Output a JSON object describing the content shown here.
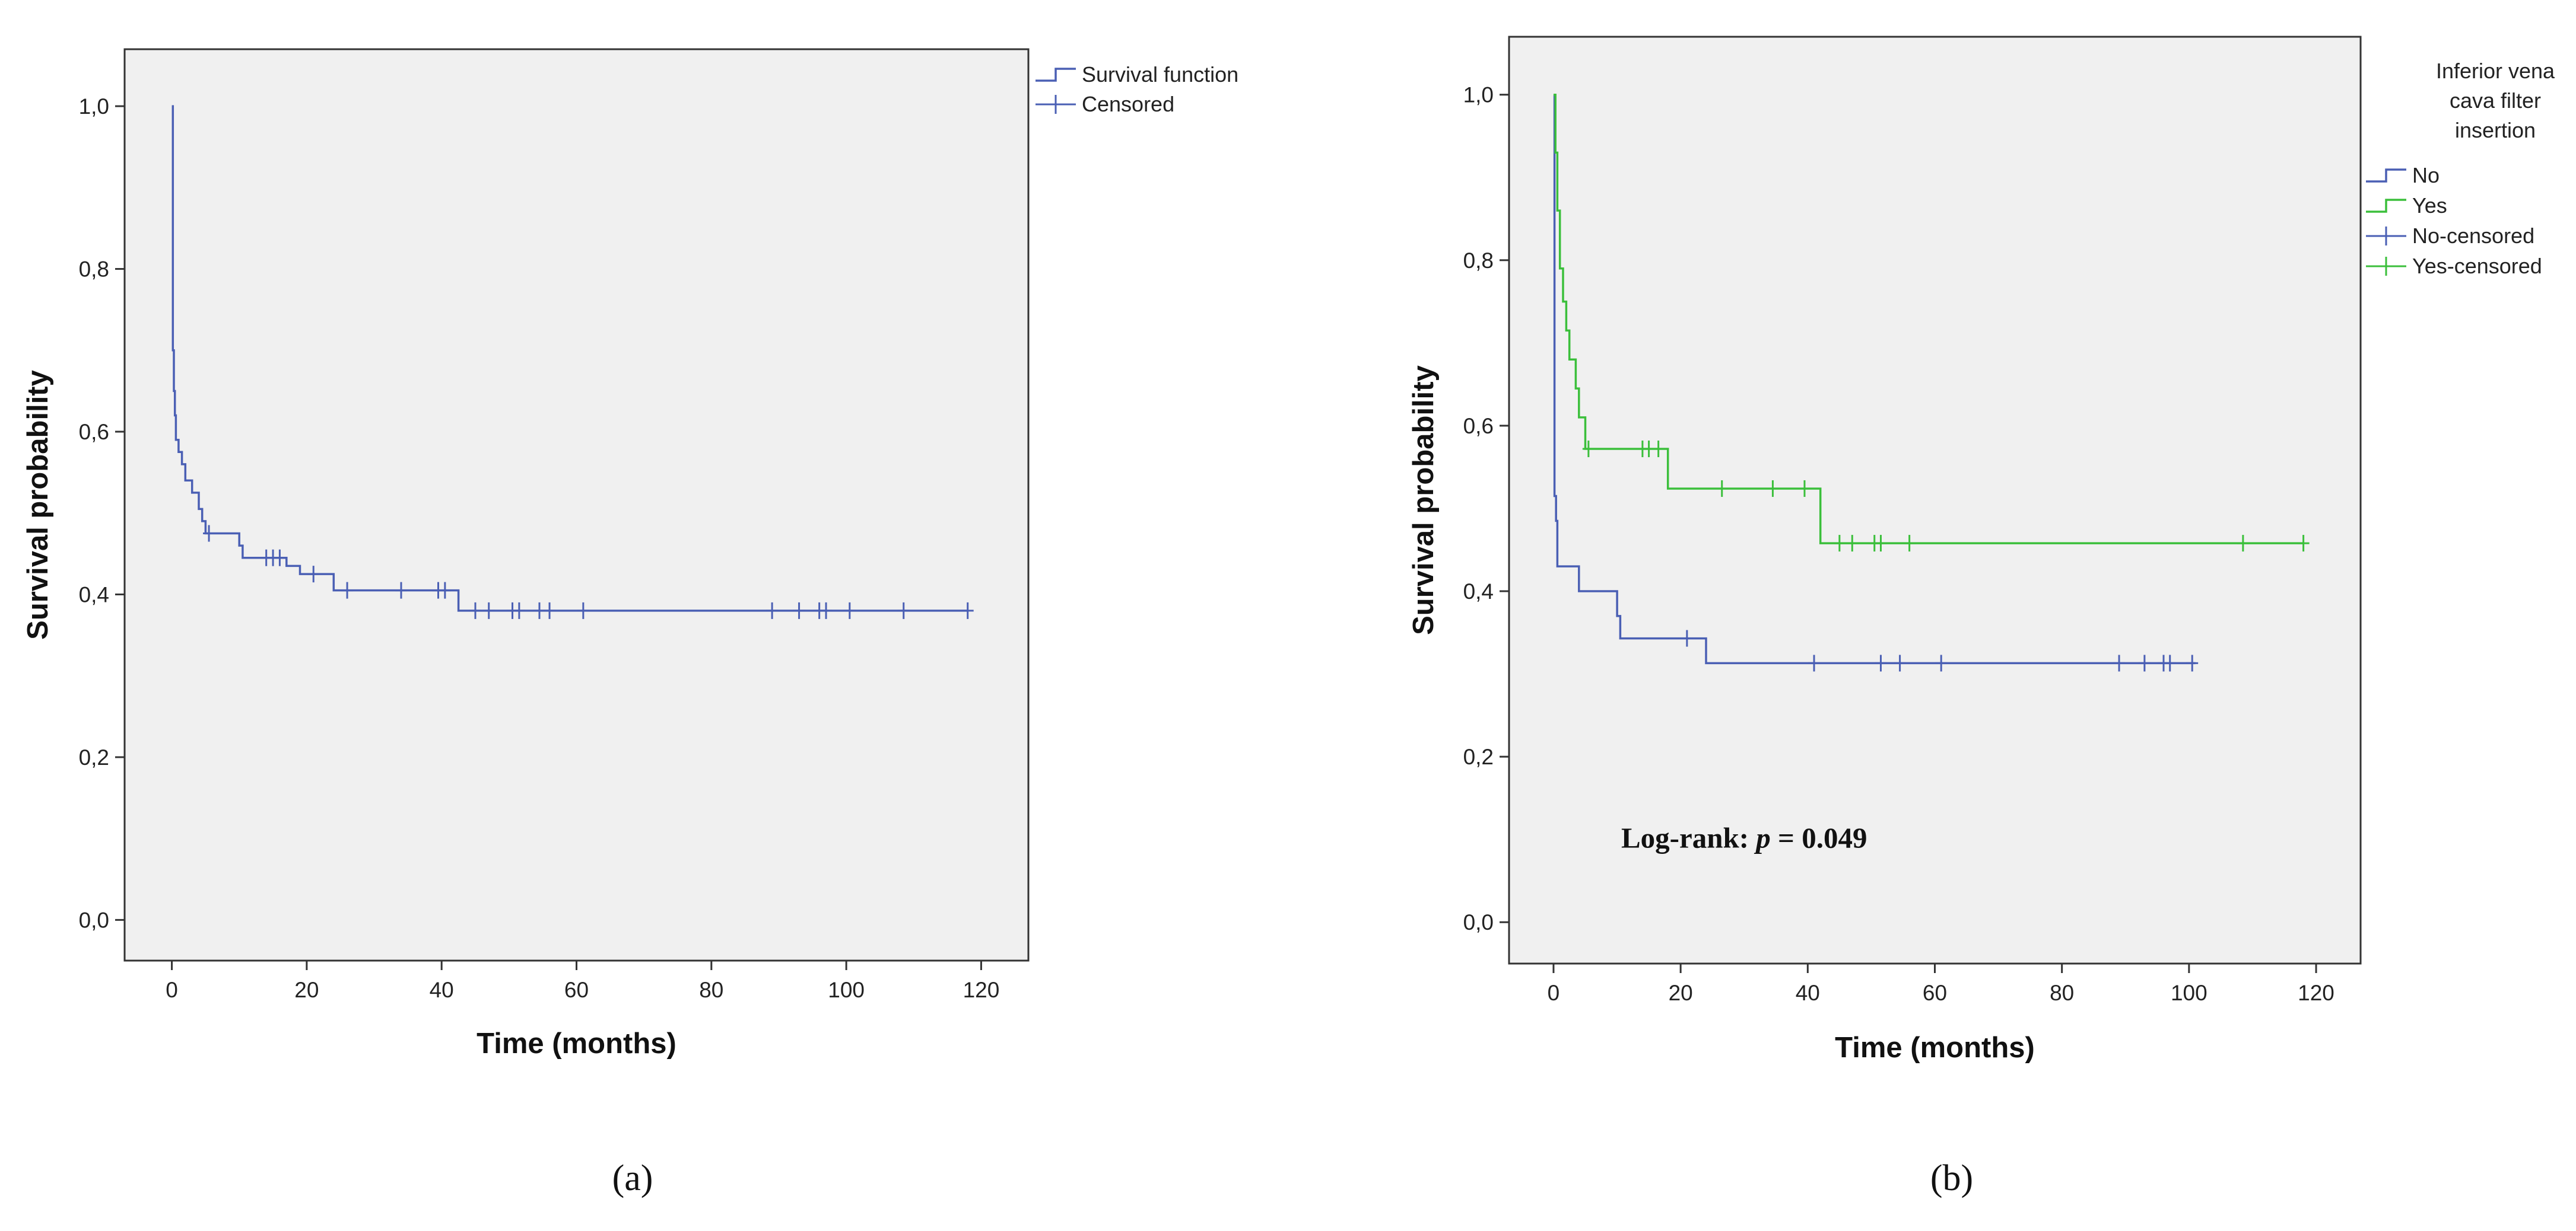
{
  "colors": {
    "plot_background": "#f0f0f0",
    "axis": "#333333",
    "series_blue": "#4a5fb4",
    "series_green": "#3bbf3b"
  },
  "chart_data": [
    {
      "type": "line",
      "subtype": "kaplan-meier",
      "panel_label": "a",
      "title": "",
      "xlabel": "Time (months)",
      "ylabel": "Survival probability",
      "xlim": [
        -7,
        127
      ],
      "ylim": [
        -0.05,
        1.07
      ],
      "x_ticks": [
        0,
        20,
        40,
        60,
        80,
        100,
        120
      ],
      "x_tick_labels": [
        "0",
        "20",
        "40",
        "60",
        "80",
        "100",
        "120"
      ],
      "y_ticks": [
        0.0,
        0.2,
        0.4,
        0.6,
        0.8,
        1.0
      ],
      "y_tick_labels": [
        "0,0",
        "0,2",
        "0,4",
        "0,6",
        "0,8",
        "1,0"
      ],
      "grid": false,
      "legend_position": "right",
      "legend_title": "",
      "legend": [
        {
          "label": "Survival function",
          "kind": "step",
          "color": "#4a5fb4"
        },
        {
          "label": "Censored",
          "kind": "censor",
          "color": "#4a5fb4"
        }
      ],
      "series": [
        {
          "name": "Survival function",
          "color": "#4a5fb4",
          "steps": [
            [
              0,
              1.0
            ],
            [
              0.15,
              0.7
            ],
            [
              0.3,
              0.65
            ],
            [
              0.45,
              0.62
            ],
            [
              0.6,
              0.59
            ],
            [
              1.0,
              0.575
            ],
            [
              1.5,
              0.56
            ],
            [
              2.0,
              0.54
            ],
            [
              3.0,
              0.525
            ],
            [
              4.0,
              0.505
            ],
            [
              4.5,
              0.49
            ],
            [
              5.0,
              0.475
            ],
            [
              10.0,
              0.46
            ],
            [
              10.5,
              0.445
            ],
            [
              17.0,
              0.435
            ],
            [
              19.0,
              0.425
            ],
            [
              24.0,
              0.405
            ],
            [
              42.5,
              0.38
            ],
            [
              118.0,
              0.38
            ]
          ],
          "censored": [
            [
              5.5,
              0.475
            ],
            [
              14.0,
              0.445
            ],
            [
              15.0,
              0.445
            ],
            [
              16.0,
              0.445
            ],
            [
              21.0,
              0.425
            ],
            [
              26.0,
              0.405
            ],
            [
              34.0,
              0.405
            ],
            [
              39.5,
              0.405
            ],
            [
              40.5,
              0.405
            ],
            [
              45.0,
              0.38
            ],
            [
              47.0,
              0.38
            ],
            [
              50.5,
              0.38
            ],
            [
              51.5,
              0.38
            ],
            [
              54.5,
              0.38
            ],
            [
              56.0,
              0.38
            ],
            [
              61.0,
              0.38
            ],
            [
              89.0,
              0.38
            ],
            [
              93.0,
              0.38
            ],
            [
              96.0,
              0.38
            ],
            [
              97.0,
              0.38
            ],
            [
              100.5,
              0.38
            ],
            [
              108.5,
              0.38
            ],
            [
              118.0,
              0.38
            ]
          ]
        }
      ]
    },
    {
      "type": "line",
      "subtype": "kaplan-meier",
      "panel_label": "b",
      "title": "",
      "xlabel": "Time (months)",
      "ylabel": "Survival probability",
      "xlim": [
        -7,
        127
      ],
      "ylim": [
        -0.05,
        1.07
      ],
      "x_ticks": [
        0,
        20,
        40,
        60,
        80,
        100,
        120
      ],
      "x_tick_labels": [
        "0",
        "20",
        "40",
        "60",
        "80",
        "100",
        "120"
      ],
      "y_ticks": [
        0.0,
        0.2,
        0.4,
        0.6,
        0.8,
        1.0
      ],
      "y_tick_labels": [
        "0,0",
        "0,2",
        "0,4",
        "0,6",
        "0,8",
        "1,0"
      ],
      "grid": false,
      "legend_position": "right",
      "legend_title": [
        "Inferior vena",
        "cava filter",
        "insertion"
      ],
      "legend": [
        {
          "label": "No",
          "kind": "step",
          "color": "#4a5fb4"
        },
        {
          "label": "Yes",
          "kind": "step",
          "color": "#3bbf3b"
        },
        {
          "label": "No-censored",
          "kind": "censor",
          "color": "#4a5fb4"
        },
        {
          "label": "Yes-censored",
          "kind": "censor",
          "color": "#3bbf3b"
        }
      ],
      "annotation": {
        "prefix": "Log-rank: ",
        "symbol": "p",
        "value": " = 0.049",
        "at": [
          30,
          0.09
        ]
      },
      "series": [
        {
          "name": "No",
          "color": "#4a5fb4",
          "steps": [
            [
              0,
              1.0
            ],
            [
              0.15,
              0.515
            ],
            [
              0.4,
              0.485
            ],
            [
              0.6,
              0.43
            ],
            [
              4.0,
              0.4
            ],
            [
              10.0,
              0.37
            ],
            [
              10.5,
              0.343
            ],
            [
              24.0,
              0.313
            ],
            [
              101.0,
              0.313
            ]
          ],
          "censored": [
            [
              21.0,
              0.343
            ],
            [
              41.0,
              0.313
            ],
            [
              51.5,
              0.313
            ],
            [
              54.5,
              0.313
            ],
            [
              61.0,
              0.313
            ],
            [
              89.0,
              0.313
            ],
            [
              93.0,
              0.313
            ],
            [
              96.0,
              0.313
            ],
            [
              97.0,
              0.313
            ],
            [
              100.5,
              0.313
            ]
          ]
        },
        {
          "name": "Yes",
          "color": "#3bbf3b",
          "steps": [
            [
              0,
              1.0
            ],
            [
              0.3,
              0.93
            ],
            [
              0.6,
              0.86
            ],
            [
              1.0,
              0.79
            ],
            [
              1.5,
              0.75
            ],
            [
              2.0,
              0.715
            ],
            [
              2.5,
              0.68
            ],
            [
              3.5,
              0.645
            ],
            [
              4.0,
              0.61
            ],
            [
              5.0,
              0.572
            ],
            [
              18.0,
              0.524
            ],
            [
              42.0,
              0.458
            ],
            [
              118.0,
              0.458
            ]
          ],
          "censored": [
            [
              5.5,
              0.572
            ],
            [
              14.0,
              0.572
            ],
            [
              15.0,
              0.572
            ],
            [
              16.5,
              0.572
            ],
            [
              26.5,
              0.524
            ],
            [
              34.5,
              0.524
            ],
            [
              39.5,
              0.524
            ],
            [
              45.0,
              0.458
            ],
            [
              47.0,
              0.458
            ],
            [
              50.5,
              0.458
            ],
            [
              51.5,
              0.458
            ],
            [
              56.0,
              0.458
            ],
            [
              108.5,
              0.458
            ],
            [
              118.0,
              0.458
            ]
          ]
        }
      ]
    }
  ]
}
